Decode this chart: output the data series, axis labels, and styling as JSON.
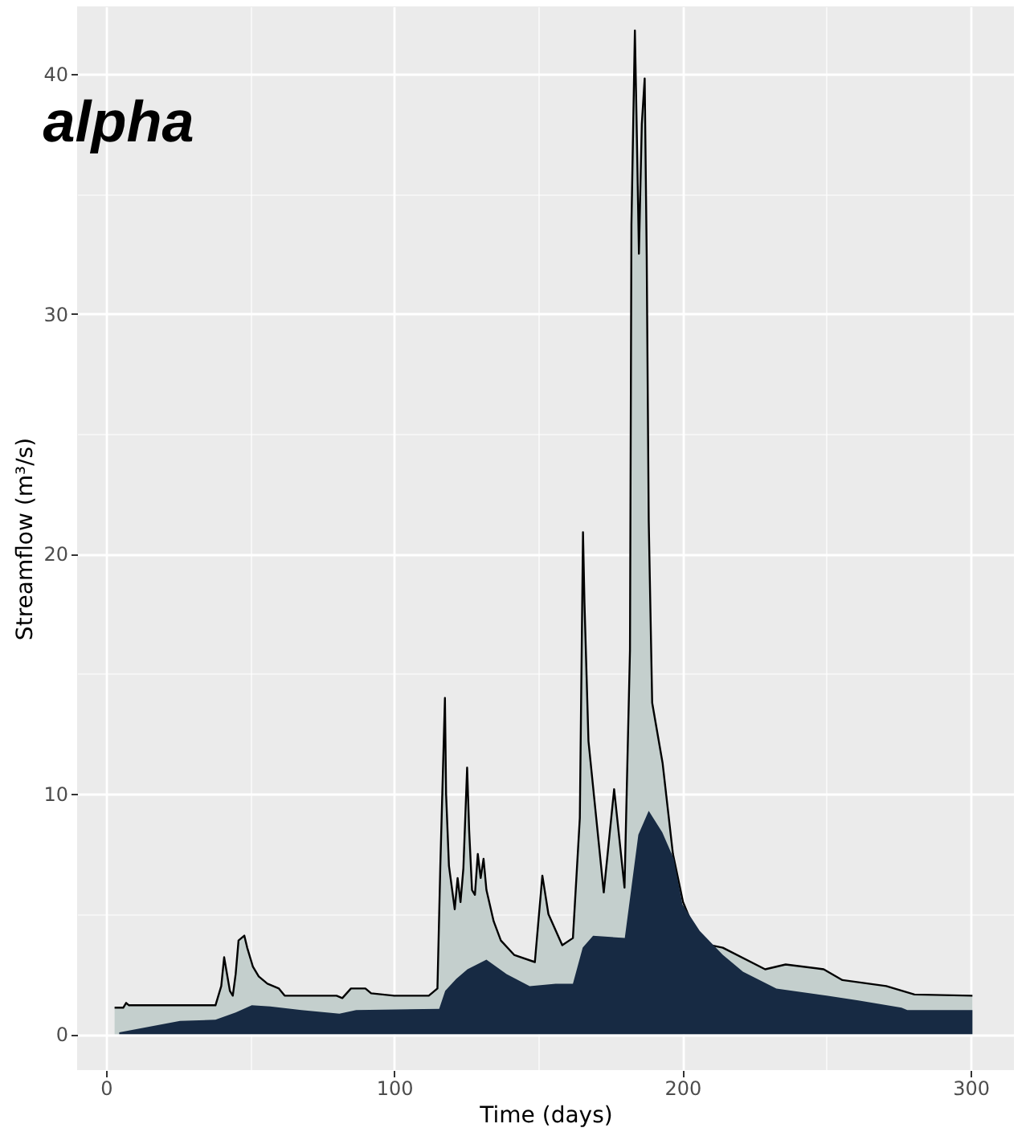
{
  "chart_data": {
    "type": "area",
    "title": "alpha",
    "xlabel": "Time (days)",
    "ylabel": "Streamflow (m³/s)",
    "xlim": [
      -10,
      315
    ],
    "ylim": [
      -1.5,
      42.8
    ],
    "xticks": [
      0,
      {
        "value": 50,
        "label": null
      },
      100,
      {
        "value": 150,
        "label": null
      },
      200,
      {
        "value": 250,
        "label": null
      },
      300
    ],
    "yticks": [
      0,
      {
        "value": 5,
        "label": null
      },
      10,
      {
        "value": 15,
        "label": null
      },
      20,
      {
        "value": 25,
        "label": null
      },
      30,
      {
        "value": 35,
        "label": null
      },
      40
    ],
    "grid": true,
    "series": [
      {
        "color": "#c4cfcd",
        "x": [
          3,
          6,
          7,
          8,
          38,
          40,
          41,
          42,
          43,
          44,
          45,
          46,
          47,
          48,
          49,
          51,
          53,
          56,
          60,
          62,
          80,
          82,
          85,
          90,
          92,
          100,
          112,
          115,
          116,
          117.6,
          118,
          119,
          121,
          122,
          123,
          124,
          125.3,
          126,
          127,
          128,
          129,
          130,
          131,
          132,
          134.5,
          137,
          141.6,
          148.8,
          151.4,
          153.5,
          158.3,
          162,
          164.4,
          165.5,
          166,
          167.4,
          172.7,
          176.3,
          179.9,
          181.8,
          182.3,
          183.5,
          184.2,
          184.9,
          185.9,
          186.9,
          187.6,
          188.3,
          189.5,
          193.1,
          196.7,
          200.2,
          206,
          214,
          228.7,
          235.8,
          249,
          255.5,
          270.7,
          280.5,
          300.6
        ],
        "values": [
          1.1,
          1.1,
          1.3,
          1.2,
          1.2,
          2.0,
          3.2,
          2.5,
          1.8,
          1.6,
          2.5,
          3.9,
          4.0,
          4.1,
          3.6,
          2.8,
          2.4,
          2.1,
          1.9,
          1.6,
          1.6,
          1.5,
          1.9,
          1.9,
          1.7,
          1.6,
          1.6,
          1.9,
          7.0,
          14.0,
          10.0,
          7.0,
          5.2,
          6.5,
          5.5,
          6.9,
          11.1,
          8.5,
          6.0,
          5.8,
          7.5,
          6.5,
          7.3,
          6.0,
          4.7,
          3.9,
          3.3,
          3.0,
          6.6,
          5.0,
          3.7,
          4.0,
          9.0,
          20.9,
          18.0,
          12.2,
          5.9,
          10.2,
          6.1,
          16.0,
          33.7,
          41.8,
          37.3,
          32.5,
          37.9,
          39.8,
          32.4,
          21.4,
          13.8,
          11.3,
          7.5,
          5.5,
          3.8,
          3.6,
          2.7,
          2.9,
          2.7,
          2.25,
          2.0,
          1.65,
          1.6
        ]
      },
      {
        "color": "#172a43",
        "x": [
          4.6,
          25.7,
          38,
          45,
          50.6,
          57,
          67.8,
          81,
          86.8,
          115.6,
          117.7,
          121.5,
          125.4,
          132,
          139,
          147,
          156,
          162,
          165.4,
          169,
          180,
          182.3,
          184.7,
          188.3,
          193,
          197,
          200,
          206,
          214,
          221,
          232.6,
          250,
          261,
          276,
          278,
          300.6
        ],
        "values": [
          0.07,
          0.55,
          0.6,
          0.9,
          1.2,
          1.15,
          1.0,
          0.85,
          1.0,
          1.05,
          1.8,
          2.3,
          2.7,
          3.1,
          2.5,
          2.0,
          2.1,
          2.1,
          3.6,
          4.1,
          4.0,
          6.1,
          8.3,
          9.3,
          8.4,
          7.3,
          5.4,
          4.3,
          3.3,
          2.6,
          1.9,
          1.6,
          1.4,
          1.1,
          1.0,
          1.0
        ]
      }
    ]
  }
}
